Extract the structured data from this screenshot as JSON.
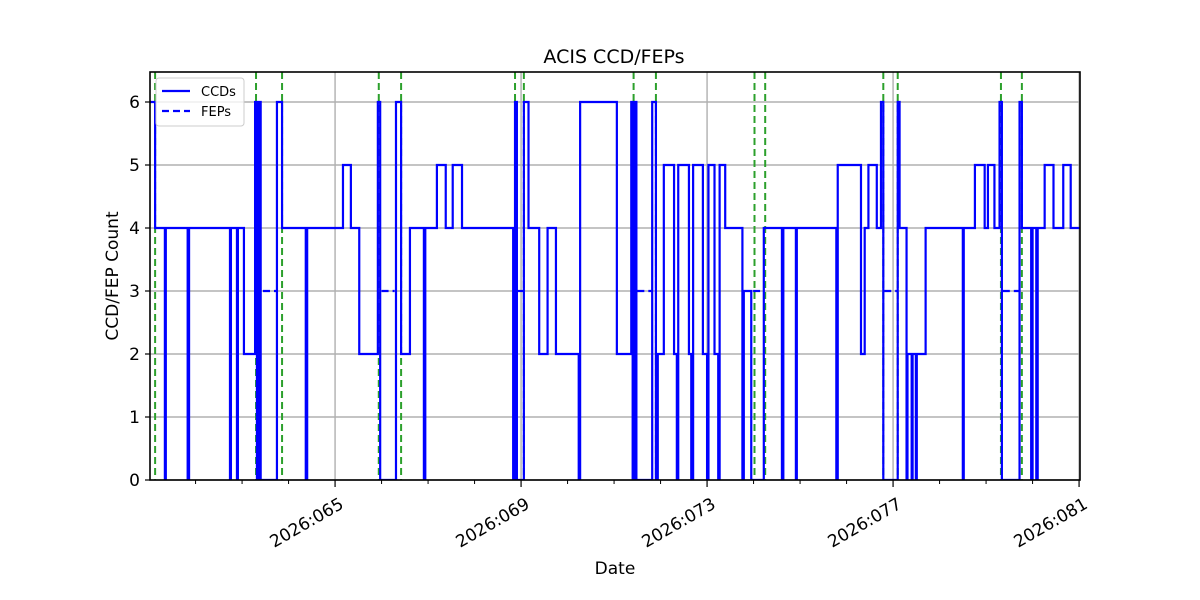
{
  "chart_data": {
    "type": "line",
    "title": "ACIS CCD/FEPs",
    "xlabel": "Date",
    "ylabel": "CCD/FEP Count",
    "xlim_day": [
      61.02,
      81.02
    ],
    "ylim": [
      0,
      6.5
    ],
    "grid": true,
    "legend_position": "upper left",
    "x_ticks": [
      {
        "day": 65,
        "label": "2026:065"
      },
      {
        "day": 69,
        "label": "2026:069"
      },
      {
        "day": 73,
        "label": "2026:073"
      },
      {
        "day": 77,
        "label": "2026:077"
      },
      {
        "day": 81,
        "label": "2026:081"
      }
    ],
    "x_minor_tick_days": [
      62,
      63,
      64,
      66,
      67,
      68,
      70,
      71,
      72,
      74,
      75,
      76,
      78,
      79,
      80
    ],
    "y_ticks": [
      0,
      1,
      2,
      3,
      4,
      5,
      6
    ],
    "series": [
      {
        "name": "CCDs",
        "style": "solid",
        "color": "#0000ff",
        "step_points": [
          [
            61.02,
            6
          ],
          [
            61.13,
            4
          ],
          [
            61.34,
            0
          ],
          [
            61.36,
            4
          ],
          [
            61.83,
            0
          ],
          [
            61.86,
            4
          ],
          [
            62.74,
            0
          ],
          [
            62.76,
            4
          ],
          [
            62.89,
            0
          ],
          [
            62.91,
            4
          ],
          [
            63.04,
            2
          ],
          [
            63.28,
            6
          ],
          [
            63.32,
            0
          ],
          [
            63.36,
            6
          ],
          [
            63.4,
            0
          ],
          [
            63.75,
            6
          ],
          [
            63.86,
            4
          ],
          [
            64.37,
            0
          ],
          [
            64.4,
            4
          ],
          [
            65.17,
            5
          ],
          [
            65.34,
            4
          ],
          [
            65.52,
            2
          ],
          [
            65.92,
            6
          ],
          [
            65.97,
            0
          ],
          [
            66.31,
            6
          ],
          [
            66.42,
            2
          ],
          [
            66.61,
            4
          ],
          [
            66.91,
            0
          ],
          [
            66.94,
            4
          ],
          [
            67.19,
            5
          ],
          [
            67.38,
            4
          ],
          [
            67.53,
            5
          ],
          [
            67.73,
            4
          ],
          [
            68.83,
            0
          ],
          [
            68.87,
            6
          ],
          [
            68.91,
            0
          ],
          [
            69.06,
            6
          ],
          [
            69.16,
            4
          ],
          [
            69.39,
            2
          ],
          [
            69.57,
            4
          ],
          [
            69.75,
            2
          ],
          [
            70.24,
            0
          ],
          [
            70.27,
            6
          ],
          [
            71.06,
            2
          ],
          [
            71.37,
            6
          ],
          [
            71.4,
            0
          ],
          [
            71.44,
            6
          ],
          [
            71.48,
            0
          ],
          [
            71.82,
            6
          ],
          [
            71.9,
            0
          ],
          [
            71.94,
            2
          ],
          [
            72.07,
            5
          ],
          [
            72.29,
            2
          ],
          [
            72.35,
            0
          ],
          [
            72.38,
            5
          ],
          [
            72.61,
            2
          ],
          [
            72.66,
            0
          ],
          [
            72.7,
            5
          ],
          [
            72.91,
            2
          ],
          [
            73.0,
            0
          ],
          [
            73.03,
            5
          ],
          [
            73.16,
            2
          ],
          [
            73.24,
            0
          ],
          [
            73.27,
            5
          ],
          [
            73.39,
            4
          ],
          [
            73.76,
            0
          ],
          [
            73.79,
            3
          ],
          [
            73.95,
            0
          ],
          [
            74.22,
            4
          ],
          [
            74.61,
            0
          ],
          [
            74.64,
            4
          ],
          [
            74.91,
            0
          ],
          [
            74.93,
            4
          ],
          [
            75.78,
            0
          ],
          [
            75.81,
            5
          ],
          [
            76.31,
            2
          ],
          [
            76.39,
            4
          ],
          [
            76.47,
            5
          ],
          [
            76.65,
            4
          ],
          [
            76.74,
            6
          ],
          [
            76.79,
            0
          ],
          [
            77.1,
            6
          ],
          [
            77.14,
            4
          ],
          [
            77.29,
            0
          ],
          [
            77.31,
            2
          ],
          [
            77.4,
            0
          ],
          [
            77.42,
            2
          ],
          [
            77.49,
            0
          ],
          [
            77.51,
            2
          ],
          [
            77.7,
            4
          ],
          [
            78.5,
            0
          ],
          [
            78.52,
            4
          ],
          [
            78.76,
            5
          ],
          [
            78.97,
            4
          ],
          [
            79.04,
            5
          ],
          [
            79.18,
            4
          ],
          [
            79.29,
            6
          ],
          [
            79.34,
            0
          ],
          [
            79.72,
            6
          ],
          [
            79.77,
            4
          ],
          [
            79.97,
            0
          ],
          [
            80.0,
            4
          ],
          [
            80.08,
            0
          ],
          [
            80.11,
            4
          ],
          [
            80.26,
            5
          ],
          [
            80.45,
            4
          ],
          [
            80.66,
            5
          ],
          [
            80.82,
            4
          ],
          [
            81.02,
            4
          ]
        ]
      },
      {
        "name": "FEPs",
        "style": "dashed",
        "color": "#0000ff",
        "note": "FEP trace overlaps CCD trace except brief level-3 segments inside green perigee windows",
        "level3_segments_day": [
          [
            63.45,
            63.73
          ],
          [
            66.0,
            66.28
          ],
          [
            68.93,
            69.05
          ],
          [
            71.5,
            71.8
          ],
          [
            73.99,
            74.2
          ],
          [
            76.81,
            77.08
          ],
          [
            79.36,
            79.7
          ]
        ]
      },
      {
        "name": "perigee-markers",
        "style": "dashed-vertical",
        "color": "#2ca02c",
        "x_day": [
          61.13,
          63.3,
          63.86,
          65.94,
          66.42,
          68.87,
          69.06,
          71.42,
          71.9,
          74.02,
          74.25,
          76.79,
          77.1,
          79.32,
          79.77
        ]
      }
    ]
  },
  "legend": {
    "items": [
      {
        "label": "CCDs",
        "style": "solid"
      },
      {
        "label": "FEPs",
        "style": "dashed"
      }
    ]
  }
}
